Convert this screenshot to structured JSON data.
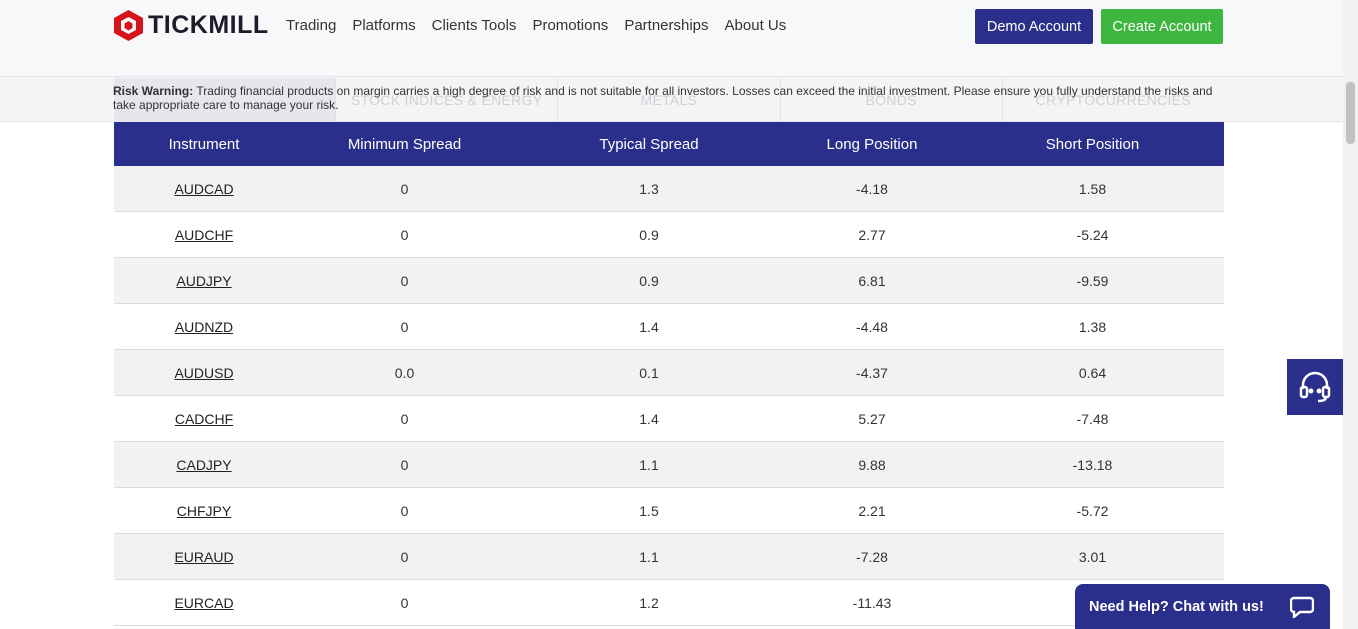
{
  "header": {
    "logo_text": "TICKMILL",
    "nav": [
      "Trading",
      "Platforms",
      "Clients Tools",
      "Promotions",
      "Partnerships",
      "About Us"
    ],
    "demo_button": "Demo Account",
    "create_button": "Create Account"
  },
  "risk": {
    "label": "Risk Warning:",
    "text": " Trading financial products on margin carries a high degree of risk and is not suitable for all investors. Losses can exceed the initial investment. Please ensure you fully understand the risks and take appropriate care to manage your risk."
  },
  "tabs": [
    "",
    "Stock Indices & Energy",
    "Metals",
    "Bonds",
    "Cryptocurrencies"
  ],
  "table": {
    "headers": [
      "Instrument",
      "Minimum Spread",
      "Typical Spread",
      "Long Position",
      "Short Position"
    ],
    "rows": [
      [
        "AUDCAD",
        "0",
        "1.3",
        "-4.18",
        "1.58"
      ],
      [
        "AUDCHF",
        "0",
        "0.9",
        "2.77",
        "-5.24"
      ],
      [
        "AUDJPY",
        "0",
        "0.9",
        "6.81",
        "-9.59"
      ],
      [
        "AUDNZD",
        "0",
        "1.4",
        "-4.48",
        "1.38"
      ],
      [
        "AUDUSD",
        "0.0",
        "0.1",
        "-4.37",
        "0.64"
      ],
      [
        "CADCHF",
        "0",
        "1.4",
        "5.27",
        "-7.48"
      ],
      [
        "CADJPY",
        "0",
        "1.1",
        "9.88",
        "-13.18"
      ],
      [
        "CHFJPY",
        "0",
        "1.5",
        "2.21",
        "-5.72"
      ],
      [
        "EURAUD",
        "0",
        "1.1",
        "-7.28",
        "3.01"
      ],
      [
        "EURCAD",
        "0",
        "1.2",
        "-11.43",
        ""
      ]
    ]
  },
  "chat": {
    "label": "Need Help? Chat with us!"
  },
  "icons": {
    "support": "headset-icon",
    "chat": "chat-bubble-icon",
    "logo": "tickmill-logo-icon"
  }
}
